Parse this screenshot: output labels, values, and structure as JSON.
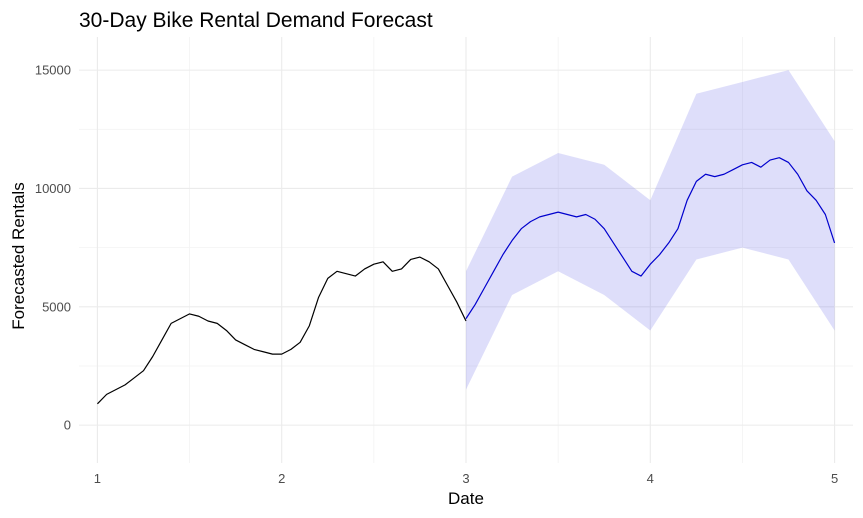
{
  "chart_data": {
    "type": "line",
    "title": "30-Day Bike Rental Demand Forecast",
    "xlabel": "Date",
    "ylabel": "Forecasted Rentals",
    "xlim": [
      0.9,
      5.1
    ],
    "ylim": [
      -1600,
      16400
    ],
    "x_ticks": [
      1,
      2,
      3,
      4,
      5
    ],
    "y_ticks": [
      0,
      5000,
      10000,
      15000
    ],
    "grid": true,
    "legend": "none",
    "colors": {
      "observed": "#000000",
      "forecast": "#0000cd",
      "forecast_band": "#6a6ae6"
    },
    "series": [
      {
        "x": [
          1.0,
          1.05,
          1.1,
          1.15,
          1.2,
          1.25,
          1.3,
          1.35,
          1.4,
          1.45,
          1.5,
          1.55,
          1.6,
          1.65,
          1.7,
          1.75,
          1.8,
          1.85,
          1.9,
          1.95,
          2.0,
          2.05,
          2.1,
          2.15,
          2.2,
          2.25,
          2.3,
          2.35,
          2.4,
          2.45,
          2.5,
          2.55,
          2.6,
          2.65,
          2.7,
          2.75,
          2.8,
          2.85,
          2.9,
          2.95,
          3.0
        ],
        "values": [
          900,
          1300,
          1500,
          1700,
          2000,
          2300,
          2900,
          3600,
          4300,
          4500,
          4700,
          4600,
          4400,
          4300,
          4000,
          3600,
          3400,
          3200,
          3100,
          3000,
          3000,
          3200,
          3500,
          4200,
          5400,
          6200,
          6500,
          6400,
          6300,
          6600,
          6800,
          6900,
          6500,
          6600,
          7000,
          7100,
          6900,
          6600,
          5900,
          5200,
          4400
        ]
      },
      {
        "x": [
          3.0,
          3.05,
          3.1,
          3.15,
          3.2,
          3.25,
          3.3,
          3.35,
          3.4,
          3.45,
          3.5,
          3.55,
          3.6,
          3.65,
          3.7,
          3.75,
          3.8,
          3.85,
          3.9,
          3.95,
          4.0,
          4.05,
          4.1,
          4.15,
          4.2,
          4.25,
          4.3,
          4.35,
          4.4,
          4.45,
          4.5,
          4.55,
          4.6,
          4.65,
          4.7,
          4.75,
          4.8,
          4.85,
          4.9,
          4.95,
          5.0
        ],
        "values": [
          4500,
          5100,
          5800,
          6500,
          7200,
          7800,
          8300,
          8600,
          8800,
          8900,
          9000,
          8900,
          8800,
          8900,
          8700,
          8300,
          7700,
          7100,
          6500,
          6300,
          6800,
          7200,
          7700,
          8300,
          9500,
          10300,
          10600,
          10500,
          10600,
          10800,
          11000,
          11100,
          10900,
          11200,
          11300,
          11100,
          10600,
          9900,
          9500,
          8900,
          7700
        ]
      }
    ],
    "forecast_interval": {
      "x": [
        3.0,
        3.25,
        3.5,
        3.75,
        4.0,
        4.25,
        4.5,
        4.75,
        5.0
      ],
      "upper": [
        6500,
        10500,
        11500,
        11000,
        9500,
        14000,
        14500,
        15000,
        12000
      ],
      "lower": [
        1500,
        5500,
        6500,
        5500,
        4000,
        7000,
        7500,
        7000,
        4000
      ]
    }
  }
}
